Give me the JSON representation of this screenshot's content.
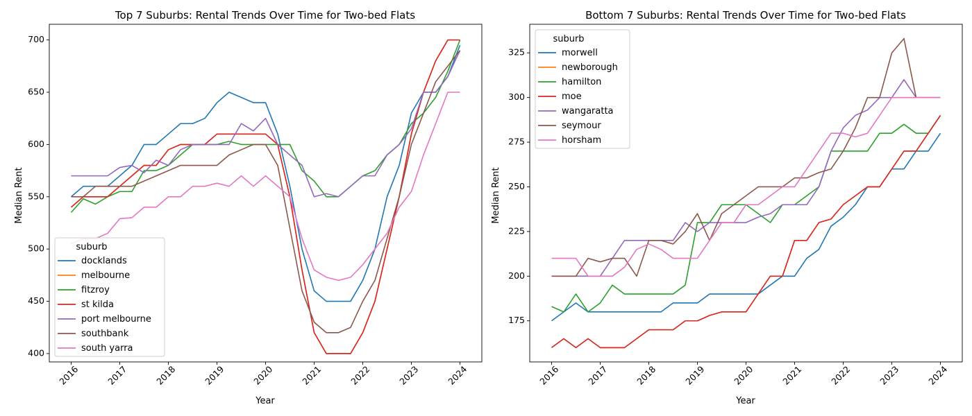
{
  "colors": {
    "docklands": "#1f77b4",
    "melbourne": "#ff7f0e",
    "fitzroy": "#2ca02c",
    "st kilda": "#d62728",
    "port melbourne": "#9467bd",
    "southbank": "#8c564b",
    "south yarra": "#e377c2",
    "morwell": "#1f77b4",
    "newborough": "#ff7f0e",
    "hamilton": "#2ca02c",
    "moe": "#d62728",
    "wangaratta": "#9467bd",
    "seymour": "#8c564b",
    "horsham": "#e377c2"
  },
  "chart_data": [
    {
      "type": "line",
      "title": "Top 7 Suburbs: Rental Trends Over Time for Two-bed Flats",
      "xlabel": "Year",
      "ylabel": "Median Rent",
      "xlim": [
        2015.55,
        2024.45
      ],
      "ylim": [
        392,
        715
      ],
      "xticks": [
        2016,
        2017,
        2018,
        2019,
        2020,
        2021,
        2022,
        2023,
        2024
      ],
      "yticks": [
        400,
        450,
        500,
        550,
        600,
        650,
        700
      ],
      "legend_title": "suburb",
      "legend_position": "lower-left",
      "grid": false,
      "x": [
        2016.0,
        2016.25,
        2016.5,
        2016.75,
        2017.0,
        2017.25,
        2017.5,
        2017.75,
        2018.0,
        2018.25,
        2018.5,
        2018.75,
        2019.0,
        2019.25,
        2019.5,
        2019.75,
        2020.0,
        2020.25,
        2020.5,
        2020.75,
        2021.0,
        2021.25,
        2021.5,
        2021.75,
        2022.0,
        2022.25,
        2022.5,
        2022.75,
        2023.0,
        2023.25,
        2023.5,
        2023.75,
        2024.0
      ],
      "series": [
        {
          "name": "docklands",
          "values": [
            550,
            560,
            560,
            560,
            570,
            580,
            600,
            600,
            610,
            620,
            620,
            625,
            640,
            650,
            645,
            640,
            640,
            610,
            560,
            500,
            460,
            450,
            450,
            450,
            470,
            500,
            550,
            580,
            630,
            650,
            650,
            665,
            695
          ]
        },
        {
          "name": "melbourne",
          "values": [
            540,
            550,
            550,
            550,
            560,
            570,
            580,
            580,
            595,
            600,
            600,
            600,
            610,
            610,
            610,
            610,
            610,
            600,
            550,
            480,
            420,
            400,
            400,
            400,
            420,
            450,
            500,
            550,
            610,
            650,
            680,
            700,
            700
          ]
        },
        {
          "name": "fitzroy",
          "values": [
            535,
            548,
            543,
            550,
            555,
            555,
            575,
            575,
            580,
            590,
            600,
            600,
            600,
            603,
            600,
            600,
            600,
            600,
            600,
            575,
            565,
            550,
            550,
            560,
            570,
            575,
            590,
            600,
            620,
            630,
            645,
            670,
            700
          ]
        },
        {
          "name": "st kilda",
          "values": [
            540,
            550,
            550,
            550,
            560,
            570,
            580,
            580,
            595,
            600,
            600,
            600,
            610,
            610,
            610,
            610,
            610,
            600,
            550,
            480,
            420,
            400,
            400,
            400,
            420,
            450,
            500,
            550,
            610,
            650,
            680,
            700,
            700
          ]
        },
        {
          "name": "port melbourne",
          "values": [
            570,
            570,
            570,
            570,
            578,
            580,
            573,
            585,
            580,
            595,
            600,
            600,
            600,
            600,
            620,
            613,
            625,
            600,
            590,
            580,
            550,
            553,
            550,
            560,
            570,
            570,
            590,
            600,
            615,
            650,
            650,
            665,
            690
          ]
        },
        {
          "name": "southbank",
          "values": [
            550,
            550,
            560,
            560,
            560,
            560,
            565,
            570,
            575,
            580,
            580,
            580,
            580,
            590,
            595,
            600,
            600,
            580,
            520,
            460,
            430,
            420,
            420,
            425,
            450,
            470,
            510,
            550,
            600,
            630,
            660,
            675,
            690
          ]
        },
        {
          "name": "south yarra",
          "values": [
            505,
            510,
            510,
            515,
            529,
            530,
            540,
            540,
            550,
            550,
            560,
            560,
            563,
            560,
            570,
            560,
            570,
            560,
            550,
            510,
            480,
            473,
            470,
            473,
            485,
            500,
            515,
            540,
            555,
            590,
            620,
            650,
            650
          ]
        }
      ]
    },
    {
      "type": "line",
      "title": "Bottom 7 Suburbs: Rental Trends Over Time for Two-bed Flats",
      "xlabel": "Year",
      "ylabel": "Median Rent",
      "xlim": [
        2015.55,
        2024.45
      ],
      "ylim": [
        152,
        341
      ],
      "xticks": [
        2016,
        2017,
        2018,
        2019,
        2020,
        2021,
        2022,
        2023,
        2024
      ],
      "yticks": [
        175,
        200,
        225,
        250,
        275,
        300,
        325
      ],
      "legend_title": "suburb",
      "legend_position": "upper-left",
      "grid": false,
      "x": [
        2016.0,
        2016.25,
        2016.5,
        2016.75,
        2017.0,
        2017.25,
        2017.5,
        2017.75,
        2018.0,
        2018.25,
        2018.5,
        2018.75,
        2019.0,
        2019.25,
        2019.5,
        2019.75,
        2020.0,
        2020.25,
        2020.5,
        2020.75,
        2021.0,
        2021.25,
        2021.5,
        2021.75,
        2022.0,
        2022.25,
        2022.5,
        2022.75,
        2023.0,
        2023.25,
        2023.5,
        2023.75,
        2024.0
      ],
      "series": [
        {
          "name": "morwell",
          "values": [
            175,
            180,
            185,
            180,
            180,
            180,
            180,
            180,
            180,
            180,
            185,
            185,
            185,
            190,
            190,
            190,
            190,
            190,
            195,
            200,
            200,
            210,
            215,
            228,
            233,
            240,
            250,
            250,
            260,
            260,
            270,
            270,
            280
          ]
        },
        {
          "name": "newborough",
          "values": [
            160,
            165,
            160,
            165,
            160,
            160,
            160,
            165,
            170,
            170,
            170,
            175,
            175,
            178,
            180,
            180,
            180,
            190,
            200,
            200,
            220,
            220,
            230,
            232,
            240,
            245,
            250,
            250,
            260,
            270,
            270,
            280,
            290
          ]
        },
        {
          "name": "hamilton",
          "values": [
            183,
            180,
            190,
            180,
            185,
            195,
            190,
            190,
            190,
            190,
            190,
            195,
            230,
            230,
            240,
            240,
            240,
            235,
            230,
            240,
            240,
            245,
            250,
            270,
            270,
            270,
            270,
            280,
            280,
            285,
            280,
            280,
            290
          ]
        },
        {
          "name": "moe",
          "values": [
            160,
            165,
            160,
            165,
            160,
            160,
            160,
            165,
            170,
            170,
            170,
            175,
            175,
            178,
            180,
            180,
            180,
            190,
            200,
            200,
            220,
            220,
            230,
            232,
            240,
            245,
            250,
            250,
            260,
            270,
            270,
            280,
            290
          ]
        },
        {
          "name": "wangaratta",
          "values": [
            200,
            200,
            200,
            200,
            200,
            210,
            220,
            220,
            220,
            220,
            220,
            230,
            225,
            230,
            230,
            230,
            230,
            233,
            235,
            240,
            240,
            240,
            250,
            270,
            283,
            290,
            293,
            300,
            300,
            310,
            300,
            300,
            300
          ]
        },
        {
          "name": "seymour",
          "values": [
            200,
            200,
            200,
            210,
            208,
            210,
            210,
            200,
            220,
            220,
            218,
            225,
            235,
            220,
            235,
            240,
            245,
            250,
            250,
            250,
            255,
            255,
            258,
            260,
            270,
            283,
            300,
            300,
            325,
            333,
            300,
            300,
            300
          ]
        },
        {
          "name": "horsham",
          "values": [
            210,
            210,
            210,
            200,
            200,
            200,
            205,
            215,
            218,
            215,
            210,
            210,
            210,
            220,
            230,
            230,
            240,
            240,
            245,
            250,
            250,
            260,
            270,
            280,
            280,
            278,
            280,
            290,
            300,
            300,
            300,
            300,
            300
          ]
        }
      ]
    }
  ]
}
